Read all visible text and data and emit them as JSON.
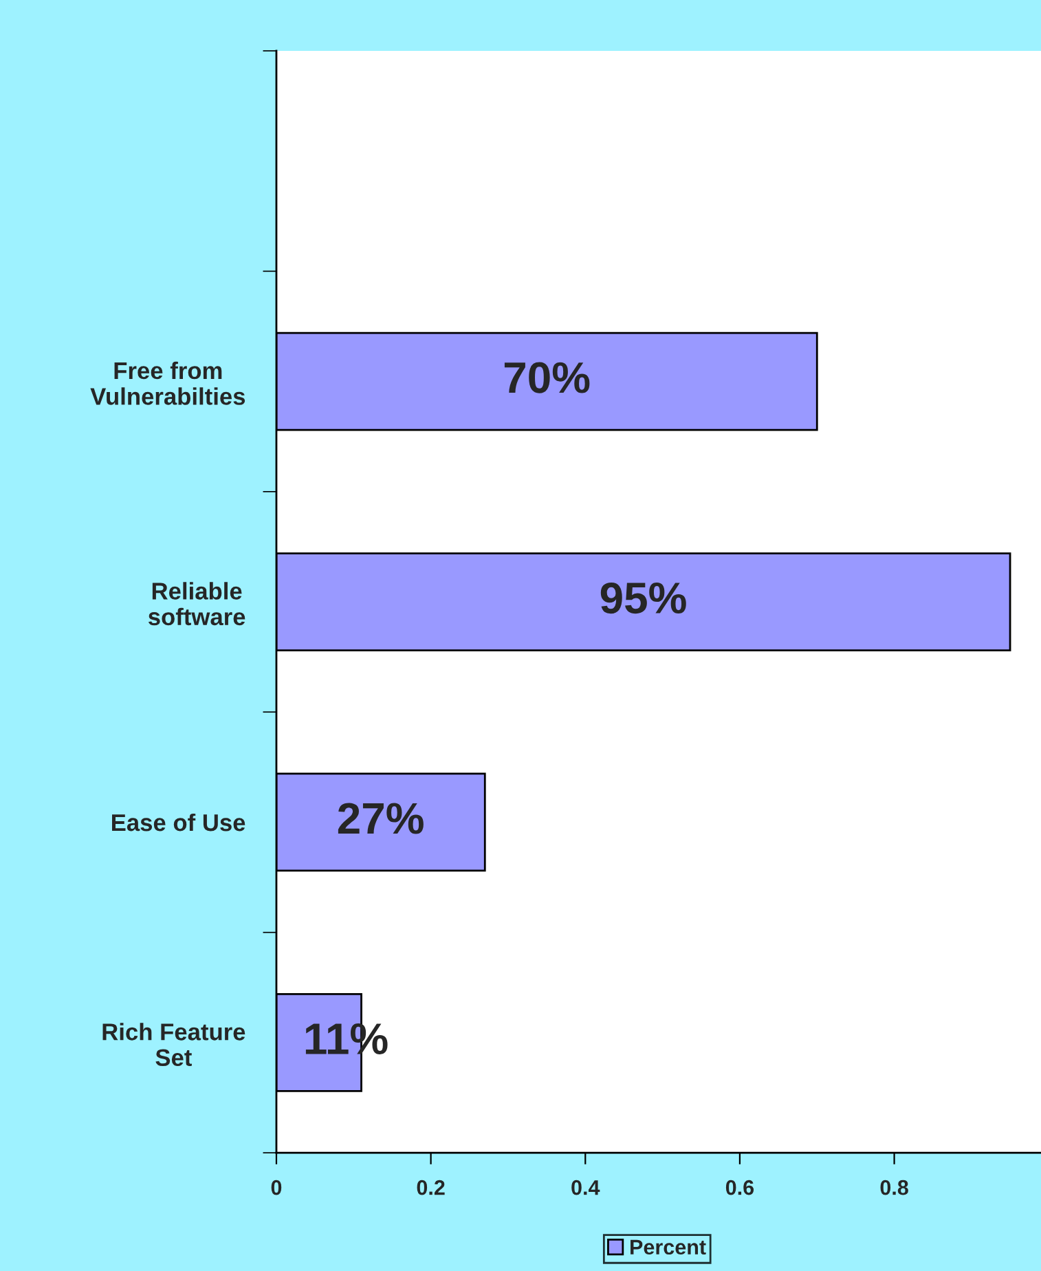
{
  "chart_data": {
    "type": "bar",
    "orientation": "horizontal",
    "categories": [
      null,
      "Free from\nVulnerabilties",
      "Reliable\nsoftware",
      "Ease of Use",
      "Rich Feature\nSet"
    ],
    "series": [
      {
        "name": "Percent",
        "color": "#9999ff",
        "values": [
          null,
          0.7,
          0.95,
          0.27,
          0.11
        ],
        "value_labels": [
          null,
          "70%",
          "95%",
          "27%",
          "11%"
        ]
      }
    ],
    "xlim": [
      0,
      0.99
    ],
    "xticks": [
      0,
      0.2,
      0.4,
      0.6,
      0.8
    ],
    "grid": false,
    "legend": "bottom"
  }
}
